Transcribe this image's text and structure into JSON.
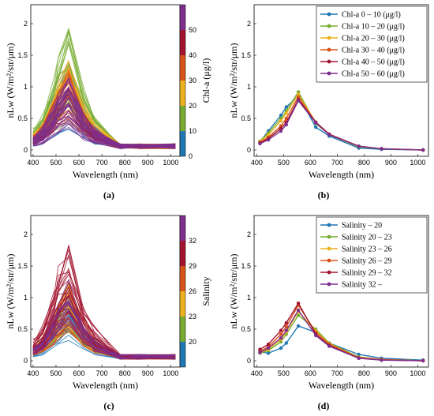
{
  "panels": {
    "a": {
      "caption": "(a)"
    },
    "b": {
      "caption": "(b)"
    },
    "c": {
      "caption": "(c)"
    },
    "d": {
      "caption": "(d)"
    }
  },
  "chart_data": [
    {
      "id": "a",
      "type": "line",
      "xlabel": "Wavelength  (nm)",
      "ylabel": "nLw  (W/m²/str/μm)",
      "xlim": [
        390,
        1040
      ],
      "ylim": [
        -0.1,
        2.3
      ],
      "xticks": [
        400,
        500,
        600,
        700,
        800,
        900,
        1000
      ],
      "yticks": [
        0,
        0.5,
        1,
        1.5,
        2
      ],
      "x": [
        400,
        412,
        443,
        490,
        510,
        555,
        620,
        670,
        780,
        865,
        1020
      ],
      "groups": [
        {
          "color": "#1f77b4",
          "count": 16,
          "peak_range": [
            0.35,
            1.65
          ]
        },
        {
          "color": "#77ac30",
          "count": 16,
          "peak_range": [
            0.5,
            1.8
          ]
        },
        {
          "color": "#edb120",
          "count": 20,
          "peak_range": [
            0.6,
            1.5
          ]
        },
        {
          "color": "#d95319",
          "count": 16,
          "peak_range": [
            0.5,
            1.2
          ]
        },
        {
          "color": "#a2142f",
          "count": 12,
          "peak_range": [
            0.5,
            1.1
          ]
        },
        {
          "color": "#7e2f8e",
          "count": 30,
          "peak_range": [
            0.35,
            1.1
          ]
        }
      ],
      "colorbar": {
        "label": "Chl-a (μg/l)",
        "ticks": [
          "0",
          "10",
          "20",
          "30",
          "40",
          "50"
        ],
        "colors": [
          "#1f77b4",
          "#77ac30",
          "#edb120",
          "#d95319",
          "#a2142f",
          "#7e2f8e"
        ]
      }
    },
    {
      "id": "b",
      "type": "line",
      "xlabel": "Wavelength  (nm)",
      "ylabel": "nLw  (W/m²/str/μm)",
      "xlim": [
        390,
        1040
      ],
      "ylim": [
        -0.1,
        2.3
      ],
      "xticks": [
        400,
        500,
        600,
        700,
        800,
        900,
        1000
      ],
      "yticks": [
        0,
        0.5,
        1,
        1.5,
        2
      ],
      "x": [
        412,
        443,
        490,
        510,
        555,
        620,
        670,
        780,
        865,
        1020
      ],
      "series": [
        {
          "name": "Chl-a    0 – 10  (μg/l)",
          "color": "#1f77b4",
          "values": [
            0.13,
            0.3,
            0.55,
            0.68,
            0.86,
            0.36,
            0.22,
            0.03,
            0.01,
            0
          ]
        },
        {
          "name": "Chl-a  10 – 20  (μg/l)",
          "color": "#77ac30",
          "values": [
            0.14,
            0.27,
            0.5,
            0.62,
            0.92,
            0.42,
            0.24,
            0.05,
            0.02,
            0
          ]
        },
        {
          "name": "Chl-a  20 – 30  (μg/l)",
          "color": "#edb120",
          "values": [
            0.13,
            0.24,
            0.46,
            0.58,
            0.88,
            0.44,
            0.25,
            0.06,
            0.02,
            0
          ]
        },
        {
          "name": "Chl-a  30 – 40  (μg/l)",
          "color": "#d95319",
          "values": [
            0.12,
            0.2,
            0.38,
            0.5,
            0.84,
            0.44,
            0.25,
            0.06,
            0.02,
            0
          ]
        },
        {
          "name": "Chl-a  40 – 50  (μg/l)",
          "color": "#a2142f",
          "values": [
            0.11,
            0.18,
            0.34,
            0.44,
            0.8,
            0.44,
            0.25,
            0.06,
            0.02,
            0
          ]
        },
        {
          "name": "Chl-a  50 – 60  (μg/l)",
          "color": "#7e2f8e",
          "values": [
            0.1,
            0.16,
            0.3,
            0.4,
            0.78,
            0.43,
            0.24,
            0.06,
            0.02,
            0
          ]
        }
      ],
      "legend": "top-right"
    },
    {
      "id": "c",
      "type": "line",
      "xlabel": "Wavelength  (nm)",
      "ylabel": "nLw  (W/m²/str/μm)",
      "xlim": [
        390,
        1040
      ],
      "ylim": [
        -0.1,
        2.3
      ],
      "xticks": [
        400,
        500,
        600,
        700,
        800,
        900,
        1000
      ],
      "yticks": [
        0,
        0.5,
        1,
        1.5,
        2
      ],
      "x": [
        400,
        412,
        443,
        490,
        510,
        555,
        620,
        670,
        780,
        865,
        1020
      ],
      "groups": [
        {
          "color": "#1f77b4",
          "count": 18,
          "peak_range": [
            0.35,
            0.75
          ]
        },
        {
          "color": "#77ac30",
          "count": 16,
          "peak_range": [
            0.5,
            1.1
          ]
        },
        {
          "color": "#edb120",
          "count": 16,
          "peak_range": [
            0.5,
            1.2
          ]
        },
        {
          "color": "#d95319",
          "count": 16,
          "peak_range": [
            0.4,
            1.3
          ]
        },
        {
          "color": "#a2142f",
          "count": 30,
          "peak_range": [
            0.6,
            1.8
          ]
        },
        {
          "color": "#7e2f8e",
          "count": 14,
          "peak_range": [
            0.6,
            1.2
          ]
        }
      ],
      "colorbar": {
        "label": "Salinity",
        "ticks": [
          "20",
          "23",
          "26",
          "29",
          "32"
        ],
        "colors": [
          "#1f77b4",
          "#77ac30",
          "#edb120",
          "#d95319",
          "#a2142f",
          "#7e2f8e"
        ]
      }
    },
    {
      "id": "d",
      "type": "line",
      "xlabel": "Wavelength  (nm)",
      "ylabel": "nLw  (W/m²/str/μm)",
      "xlim": [
        390,
        1040
      ],
      "ylim": [
        -0.1,
        2.3
      ],
      "xticks": [
        400,
        500,
        600,
        700,
        800,
        900,
        1000
      ],
      "yticks": [
        0,
        0.5,
        1,
        1.5,
        2
      ],
      "x": [
        412,
        443,
        490,
        510,
        555,
        620,
        670,
        780,
        865,
        1020
      ],
      "series": [
        {
          "name": "Salinity       – 20",
          "color": "#1f77b4",
          "values": [
            0.14,
            0.12,
            0.2,
            0.28,
            0.55,
            0.45,
            0.28,
            0.1,
            0.04,
            0.01
          ]
        },
        {
          "name": "Salinity  20 – 23",
          "color": "#77ac30",
          "values": [
            0.12,
            0.16,
            0.3,
            0.42,
            0.72,
            0.5,
            0.28,
            0.06,
            0.02,
            0
          ]
        },
        {
          "name": "Salinity  23 – 26",
          "color": "#edb120",
          "values": [
            0.13,
            0.18,
            0.34,
            0.46,
            0.78,
            0.47,
            0.27,
            0.05,
            0.02,
            0
          ]
        },
        {
          "name": "Salinity  26 – 29",
          "color": "#d95319",
          "values": [
            0.15,
            0.22,
            0.42,
            0.54,
            0.88,
            0.45,
            0.26,
            0.05,
            0.02,
            0
          ]
        },
        {
          "name": "Salinity  29 – 32",
          "color": "#a2142f",
          "values": [
            0.18,
            0.26,
            0.48,
            0.6,
            0.91,
            0.42,
            0.24,
            0.04,
            0.01,
            0
          ]
        },
        {
          "name": "Salinity  32 –",
          "color": "#7e2f8e",
          "values": [
            0.13,
            0.2,
            0.36,
            0.48,
            0.8,
            0.4,
            0.23,
            0.04,
            0.01,
            0
          ]
        }
      ],
      "legend": "top-right"
    }
  ]
}
